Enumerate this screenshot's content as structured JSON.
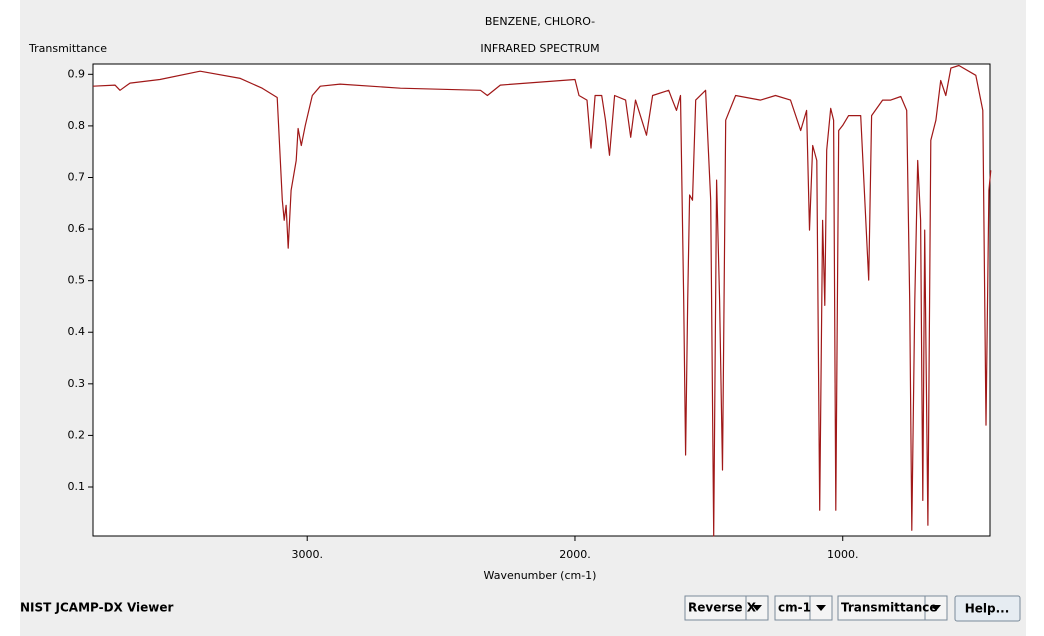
{
  "chart_data": {
    "type": "line",
    "title": "BENZENE, CHLORO-",
    "subtitle": "INFRARED SPECTRUM",
    "y_label": "Transmittance",
    "x_label": "Wavenumber (cm-1)",
    "x": [
      3800,
      3718,
      3699,
      3662,
      3550,
      3400,
      3250,
      3168,
      3112,
      3093,
      3086,
      3079,
      3071,
      3060,
      3041,
      3034,
      3022,
      3007,
      2981,
      2951,
      2877,
      2652,
      2353,
      2327,
      2279,
      2000,
      1985,
      1955,
      1940,
      1925,
      1900,
      1886,
      1871,
      1852,
      1811,
      1792,
      1774,
      1733,
      1710,
      1650,
      1636,
      1621,
      1606,
      1594,
      1587,
      1579,
      1572,
      1561,
      1549,
      1512,
      1493,
      1482,
      1471,
      1460,
      1449,
      1437,
      1400,
      1307,
      1251,
      1195,
      1157,
      1135,
      1124,
      1112,
      1097,
      1086,
      1075,
      1067,
      1060,
      1045,
      1034,
      1026,
      1015,
      1000,
      978,
      933,
      903,
      892,
      851,
      821,
      783,
      761,
      750,
      742,
      731,
      720,
      709,
      701,
      694,
      682,
      671,
      652,
      634,
      615,
      596,
      566,
      503,
      477,
      465,
      454,
      447
    ],
    "values": [
      0.877,
      0.879,
      0.869,
      0.883,
      0.89,
      0.906,
      0.892,
      0.873,
      0.855,
      0.656,
      0.617,
      0.646,
      0.563,
      0.675,
      0.733,
      0.795,
      0.762,
      0.801,
      0.859,
      0.877,
      0.881,
      0.873,
      0.869,
      0.859,
      0.879,
      0.89,
      0.859,
      0.85,
      0.757,
      0.859,
      0.859,
      0.811,
      0.743,
      0.859,
      0.85,
      0.778,
      0.85,
      0.782,
      0.859,
      0.869,
      0.85,
      0.83,
      0.859,
      0.462,
      0.162,
      0.462,
      0.666,
      0.656,
      0.85,
      0.869,
      0.656,
      0.005,
      0.695,
      0.462,
      0.133,
      0.811,
      0.859,
      0.85,
      0.859,
      0.85,
      0.791,
      0.83,
      0.598,
      0.762,
      0.733,
      0.055,
      0.617,
      0.452,
      0.753,
      0.834,
      0.811,
      0.055,
      0.791,
      0.801,
      0.82,
      0.82,
      0.501,
      0.82,
      0.85,
      0.85,
      0.857,
      0.83,
      0.462,
      0.016,
      0.462,
      0.733,
      0.617,
      0.074,
      0.598,
      0.026,
      0.772,
      0.811,
      0.888,
      0.859,
      0.912,
      0.917,
      0.898,
      0.83,
      0.22,
      0.675,
      0.714
    ],
    "color": "#a01818",
    "xlim": [
      3800,
      450
    ],
    "ylim": [
      0.005,
      0.92
    ],
    "xticks": [
      {
        "value": 3000,
        "label": "3000."
      },
      {
        "value": 2000,
        "label": "2000."
      },
      {
        "value": 1000,
        "label": "1000."
      }
    ],
    "yticks": [
      0.1,
      0.2,
      0.3,
      0.4,
      0.5,
      0.6,
      0.7,
      0.8,
      0.9
    ]
  },
  "ui": {
    "app_name": "NIST JCAMP-DX Viewer",
    "dropdowns": [
      "Reverse X",
      "cm-1",
      "Transmittance"
    ],
    "button": "Help..."
  }
}
